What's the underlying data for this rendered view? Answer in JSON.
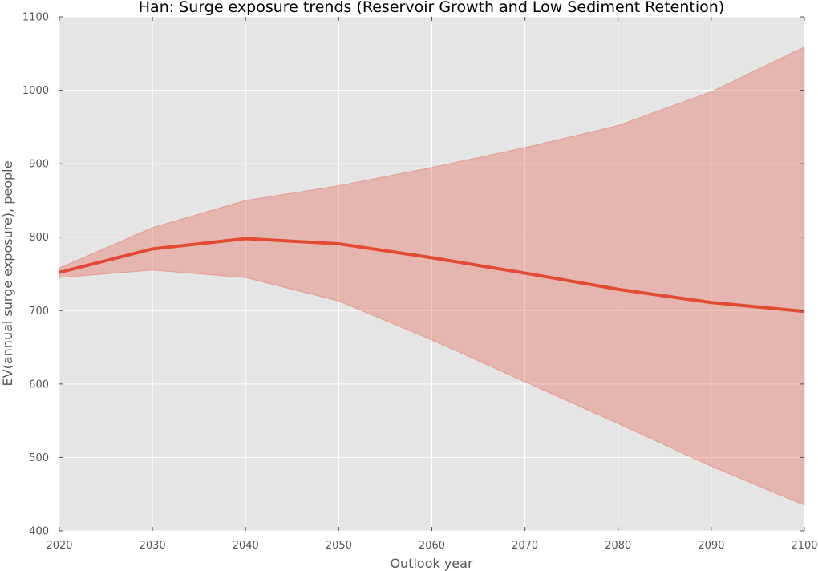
{
  "chart_data": {
    "type": "line",
    "title": "Han: Surge exposure trends (Reservoir Growth and Low Sediment Retention)",
    "xlabel": "Outlook year",
    "ylabel": "EV(annual surge exposure), people",
    "xlim": [
      2020,
      2100
    ],
    "ylim": [
      400,
      1100
    ],
    "x_ticks": [
      2020,
      2030,
      2040,
      2050,
      2060,
      2070,
      2080,
      2090,
      2100
    ],
    "y_ticks": [
      400,
      500,
      600,
      700,
      800,
      900,
      1000,
      1100
    ],
    "grid": true,
    "x": [
      2020,
      2030,
      2040,
      2050,
      2060,
      2070,
      2080,
      2090,
      2100
    ],
    "series": [
      {
        "values": [
          752,
          784,
          798,
          791,
          772,
          751,
          729,
          711,
          699
        ],
        "lower": [
          745,
          755,
          745,
          713,
          660,
          603,
          546,
          488,
          435
        ],
        "upper": [
          758,
          813,
          850,
          870,
          895,
          922,
          952,
          998,
          1059
        ],
        "line_color": "#e24a33",
        "band_color": "#e24a33"
      }
    ],
    "background_color": "#e5e5e5",
    "grid_color": "#ffffff"
  }
}
